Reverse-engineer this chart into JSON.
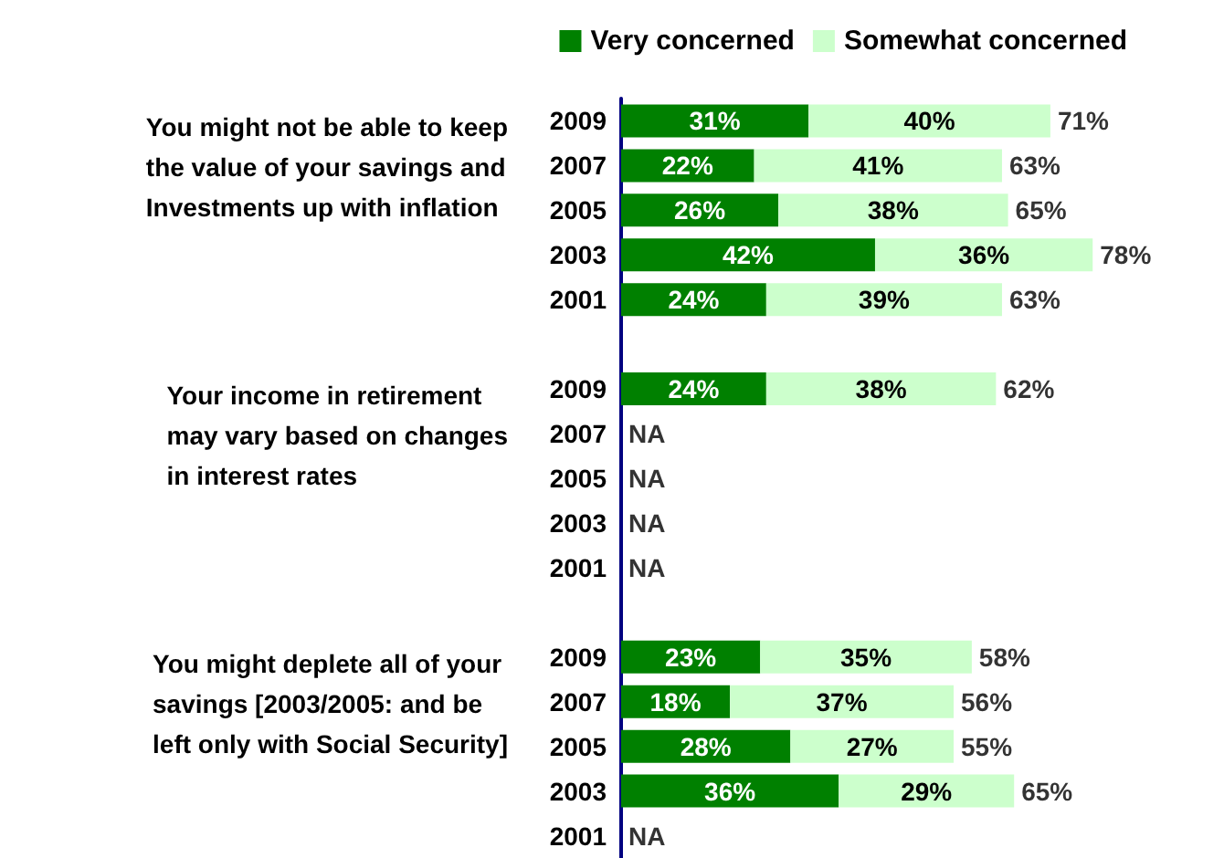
{
  "chart_data": {
    "type": "bar",
    "orientation": "horizontal",
    "stacked": true,
    "legend": "top right",
    "categories": [
      "2009",
      "2007",
      "2005",
      "2003",
      "2001",
      null,
      "2009",
      "2007",
      "2005",
      "2003",
      "2001",
      null,
      "2009",
      "2007",
      "2005",
      "2003",
      "2001"
    ],
    "series": [
      {
        "name": "Very concerned",
        "color": "#008000",
        "values": [
          31,
          22,
          26,
          42,
          24,
          null,
          24,
          null,
          null,
          null,
          null,
          null,
          23,
          18,
          28,
          36,
          null
        ],
        "value_labels": [
          "31%",
          "22%",
          "26%",
          "42%",
          "24%",
          null,
          "24%",
          null,
          null,
          null,
          null,
          null,
          "23%",
          "18%",
          "28%",
          "36%",
          null
        ]
      },
      {
        "name": "Somewhat concerned",
        "color": "#ccffcc",
        "values": [
          40,
          41,
          38,
          36,
          39,
          null,
          38,
          null,
          null,
          null,
          null,
          null,
          35,
          37,
          27,
          29,
          null
        ],
        "value_labels": [
          "40%",
          "41%",
          "38%",
          "36%",
          "39%",
          null,
          "38%",
          null,
          null,
          null,
          null,
          null,
          "35%",
          "37%",
          "27%",
          "29%",
          null
        ]
      }
    ],
    "totals": [
      "71%",
      "63%",
      "65%",
      "78%",
      "63%",
      null,
      "62%",
      "NA",
      "NA",
      "NA",
      "NA",
      null,
      "58%",
      "56%",
      "55%",
      "65%",
      "NA"
    ],
    "annotations": [
      "You might not be able to keep\nthe value of your savings and\nInvestments up with inflation",
      "Your income in retirement\nmay vary based on changes\nin interest rates",
      "You might deplete all of your\nsavings [2003/2005: and be\nleft only with Social Security]"
    ]
  }
}
